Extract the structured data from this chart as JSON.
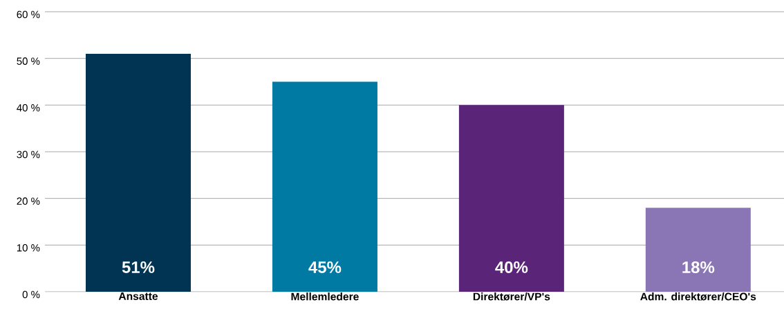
{
  "chart_data": {
    "type": "bar",
    "categories": [
      "Ansatte",
      "Mellemledere",
      "Direktører/VP's",
      "Adm. direktører/CEO's"
    ],
    "values": [
      51,
      45,
      40,
      18
    ],
    "colors": [
      "#003452",
      "#0079a3",
      "#5a2479",
      "#8a76b4"
    ],
    "value_labels": [
      "51%",
      "45%",
      "40%",
      "18%"
    ],
    "ylim": [
      0,
      60
    ],
    "yticks": [
      {
        "value": 0,
        "label": "0 %"
      },
      {
        "value": 10,
        "label": "10 %"
      },
      {
        "value": 20,
        "label": "20 %"
      },
      {
        "value": 30,
        "label": "30 %"
      },
      {
        "value": 40,
        "label": "40 %"
      },
      {
        "value": 50,
        "label": "50 %"
      },
      {
        "value": 60,
        "label": "60 %"
      }
    ],
    "grid": "y"
  }
}
